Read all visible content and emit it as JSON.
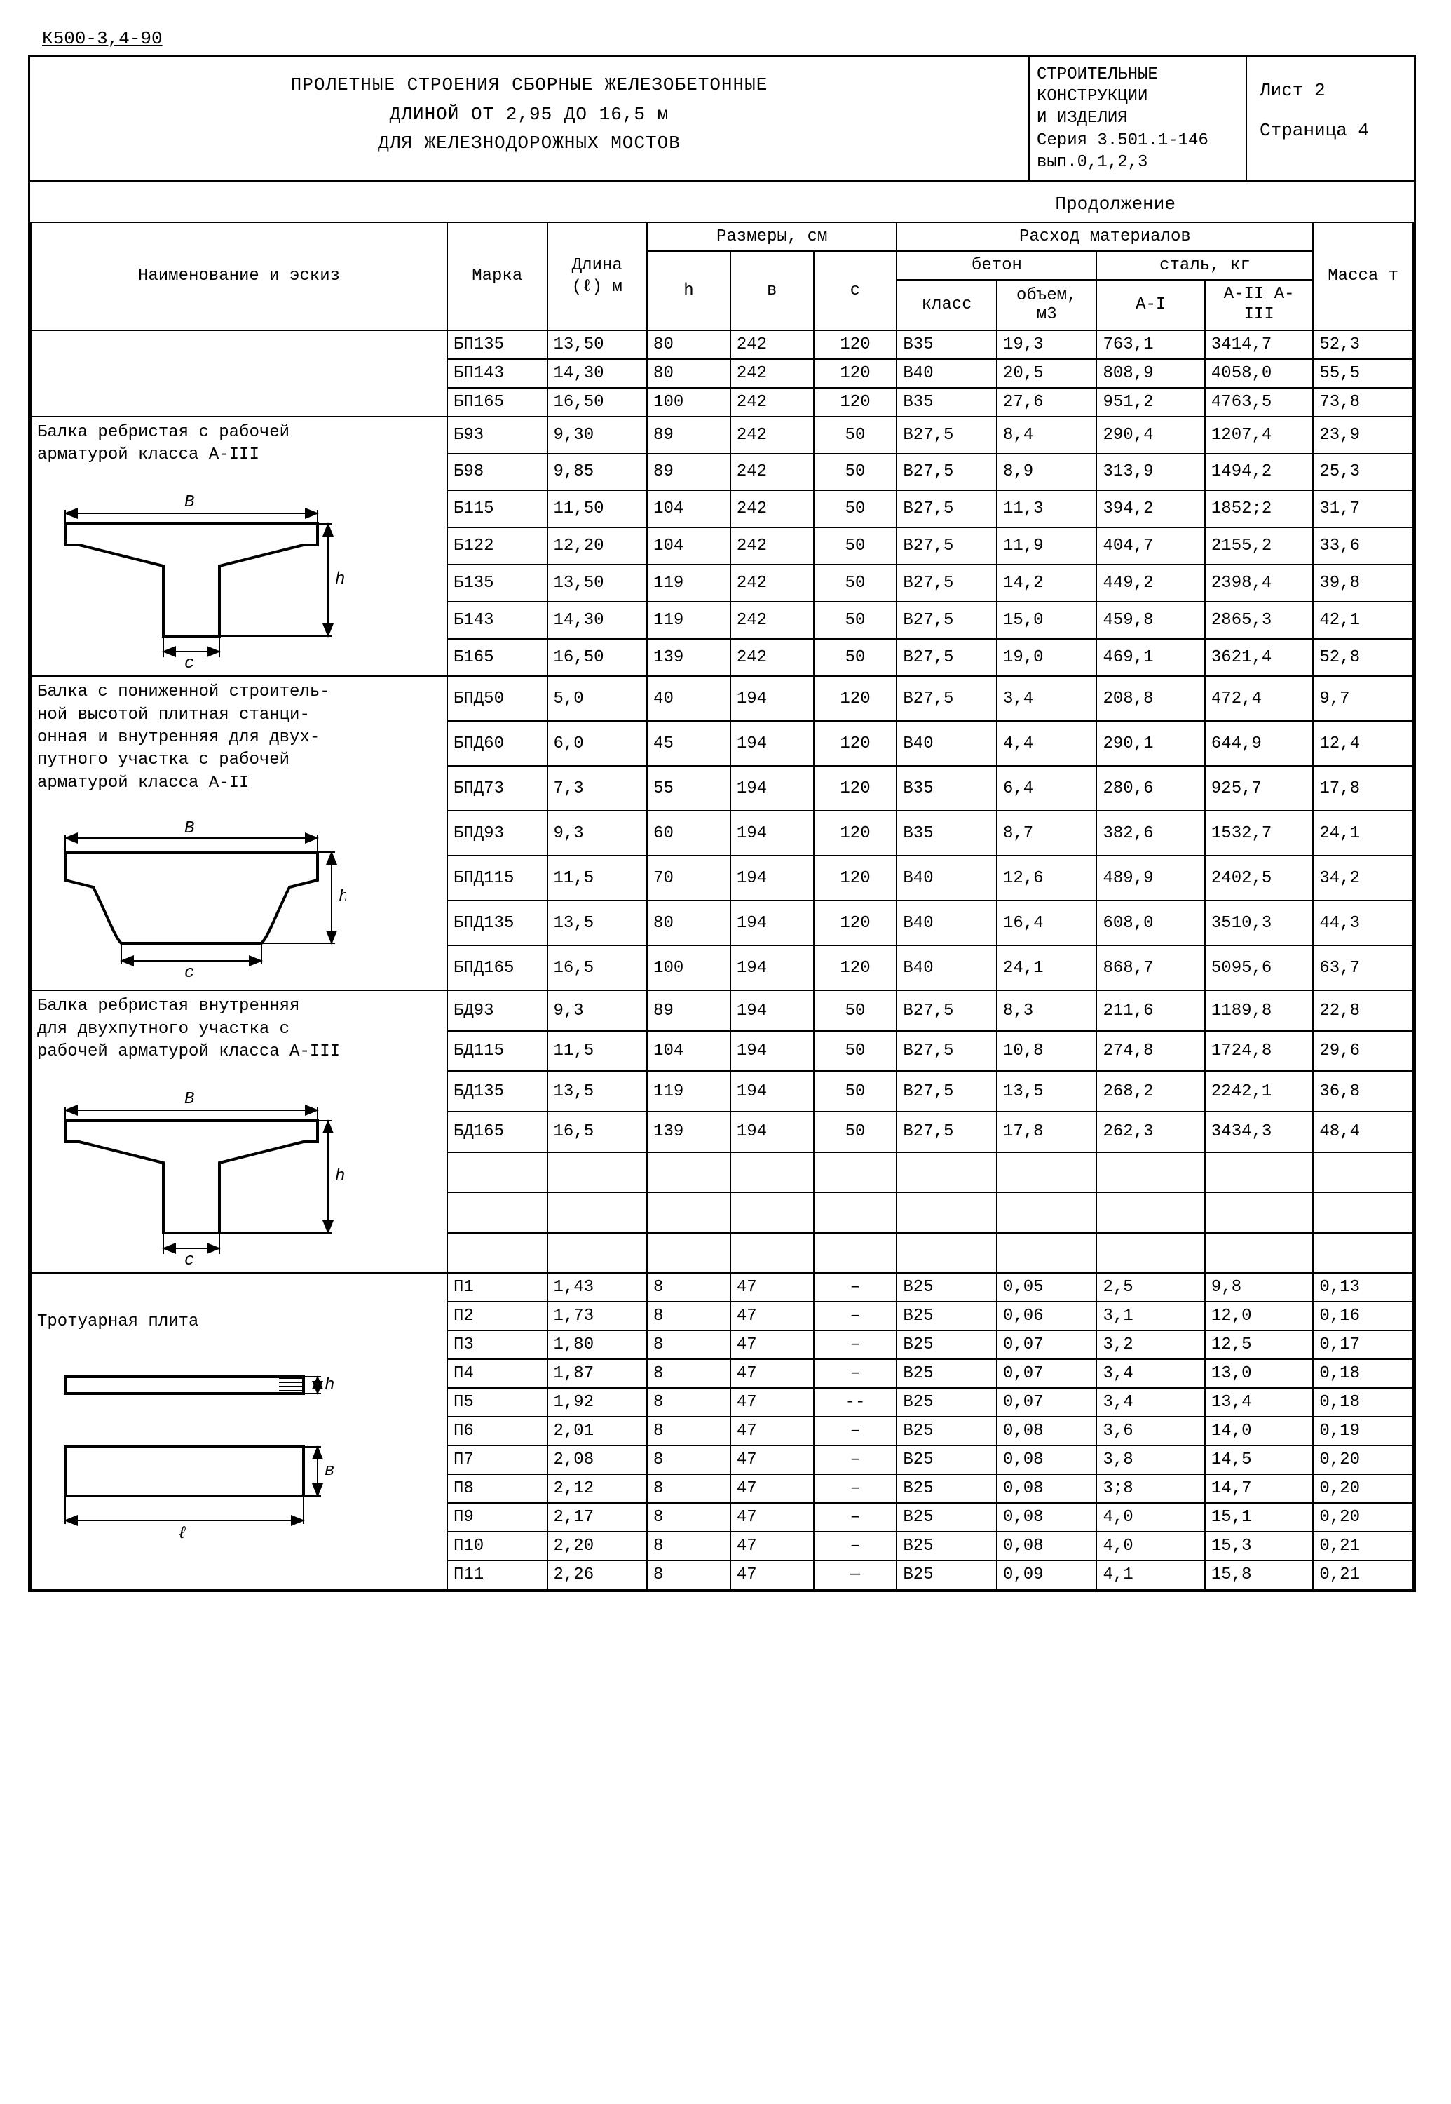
{
  "doc_id": "К500-3,4-90",
  "header": {
    "title_l1": "ПРОЛЕТНЫЕ СТРОЕНИЯ СБОРНЫЕ ЖЕЛЕЗОБЕТОННЫЕ",
    "title_l2": "ДЛИНОЙ ОТ 2,95 ДО 16,5 м",
    "title_l3": "ДЛЯ ЖЕЛЕЗНОДОРОЖНЫХ МОСТОВ",
    "org_l1": "СТРОИТЕЛЬНЫЕ",
    "org_l2": "КОНСТРУКЦИИ",
    "org_l3": "И ИЗДЕЛИЯ",
    "series": "Серия 3.501.1-146",
    "issue": "вып.0,1,2,3",
    "sheet": "Лист 2",
    "page": "Страница 4"
  },
  "continuation": "Продолжение",
  "columns": {
    "name": "Наименование и эскиз",
    "mark": "Марка",
    "length": "Длина (ℓ) м",
    "dims": "Размеры, см",
    "h": "h",
    "b": "в",
    "c": "с",
    "materials": "Расход материалов",
    "concrete": "бетон",
    "steel": "сталь, кг",
    "class": "класс",
    "volume": "объем, м3",
    "a1": "A-I",
    "a2": "A-II A-III",
    "mass": "Масса т"
  },
  "sections": [
    {
      "name_lines": [],
      "sketch": null,
      "rows": [
        {
          "mark": "БП135",
          "len": "13,50",
          "h": "80",
          "b": "242",
          "c": "120",
          "class": "В35",
          "vol": "19,3",
          "a1": "763,1",
          "a2": "3414,7",
          "mass": "52,3"
        },
        {
          "mark": "БП143",
          "len": "14,30",
          "h": "80",
          "b": "242",
          "c": "120",
          "class": "В40",
          "vol": "20,5",
          "a1": "808,9",
          "a2": "4058,0",
          "mass": "55,5"
        },
        {
          "mark": "БП165",
          "len": "16,50",
          "h": "100",
          "b": "242",
          "c": "120",
          "class": "В35",
          "vol": "27,6",
          "a1": "951,2",
          "a2": "4763,5",
          "mass": "73,8"
        }
      ]
    },
    {
      "name_lines": [
        "Балка ребристая с рабочей",
        "арматурой класса A-III"
      ],
      "sketch": "tbeam1",
      "rows": [
        {
          "mark": "Б93",
          "len": "9,30",
          "h": "89",
          "b": "242",
          "c": "50",
          "class": "В27,5",
          "vol": "8,4",
          "a1": "290,4",
          "a2": "1207,4",
          "mass": "23,9"
        },
        {
          "mark": "Б98",
          "len": "9,85",
          "h": "89",
          "b": "242",
          "c": "50",
          "class": "В27,5",
          "vol": "8,9",
          "a1": "313,9",
          "a2": "1494,2",
          "mass": "25,3"
        },
        {
          "mark": "Б115",
          "len": "11,50",
          "h": "104",
          "b": "242",
          "c": "50",
          "class": "В27,5",
          "vol": "11,3",
          "a1": "394,2",
          "a2": "1852;2",
          "mass": "31,7"
        },
        {
          "mark": "Б122",
          "len": "12,20",
          "h": "104",
          "b": "242",
          "c": "50",
          "class": "В27,5",
          "vol": "11,9",
          "a1": "404,7",
          "a2": "2155,2",
          "mass": "33,6"
        },
        {
          "mark": "Б135",
          "len": "13,50",
          "h": "119",
          "b": "242",
          "c": "50",
          "class": "В27,5",
          "vol": "14,2",
          "a1": "449,2",
          "a2": "2398,4",
          "mass": "39,8"
        },
        {
          "mark": "Б143",
          "len": "14,30",
          "h": "119",
          "b": "242",
          "c": "50",
          "class": "В27,5",
          "vol": "15,0",
          "a1": "459,8",
          "a2": "2865,3",
          "mass": "42,1"
        },
        {
          "mark": "Б165",
          "len": "16,50",
          "h": "139",
          "b": "242",
          "c": "50",
          "class": "В27,5",
          "vol": "19,0",
          "a1": "469,1",
          "a2": "3621,4",
          "mass": "52,8"
        }
      ]
    },
    {
      "name_lines": [
        "Балка с пониженной строитель-",
        "ной высотой плитная станци-",
        "онная и внутренняя для двух-",
        "путного участка с рабочей",
        "арматурой       класса A-II"
      ],
      "sketch": "slab_beam",
      "dim_label": "В",
      "rows": [
        {
          "mark": "БПД50",
          "len": "5,0",
          "h": "40",
          "b": "194",
          "c": "120",
          "class": "В27,5",
          "vol": "3,4",
          "a1": "208,8",
          "a2": "472,4",
          "mass": "9,7"
        },
        {
          "mark": "БПД60",
          "len": "6,0",
          "h": "45",
          "b": "194",
          "c": "120",
          "class": "В40",
          "vol": "4,4",
          "a1": "290,1",
          "a2": "644,9",
          "mass": "12,4"
        },
        {
          "mark": "БПД73",
          "len": "7,3",
          "h": "55",
          "b": "194",
          "c": "120",
          "class": "В35",
          "vol": "6,4",
          "a1": "280,6",
          "a2": "925,7",
          "mass": "17,8"
        },
        {
          "mark": "БПД93",
          "len": "9,3",
          "h": "60",
          "b": "194",
          "c": "120",
          "class": "В35",
          "vol": "8,7",
          "a1": "382,6",
          "a2": "1532,7",
          "mass": "24,1"
        },
        {
          "mark": "БПД115",
          "len": "11,5",
          "h": "70",
          "b": "194",
          "c": "120",
          "class": "В40",
          "vol": "12,6",
          "a1": "489,9",
          "a2": "2402,5",
          "mass": "34,2"
        },
        {
          "mark": "БПД135",
          "len": "13,5",
          "h": "80",
          "b": "194",
          "c": "120",
          "class": "В40",
          "vol": "16,4",
          "a1": "608,0",
          "a2": "3510,3",
          "mass": "44,3"
        },
        {
          "mark": "БПД165",
          "len": "16,5",
          "h": "100",
          "b": "194",
          "c": "120",
          "class": "В40",
          "vol": "24,1",
          "a1": "868,7",
          "a2": "5095,6",
          "mass": "63,7"
        }
      ]
    },
    {
      "name_lines": [
        "Балка ребристая внутренняя",
        "для двухпутного участка с",
        "рабочей арматурой класса A-III"
      ],
      "sketch": "tbeam2",
      "rows": [
        {
          "mark": "БД93",
          "len": "9,3",
          "h": "89",
          "b": "194",
          "c": "50",
          "class": "В27,5",
          "vol": "8,3",
          "a1": "211,6",
          "a2": "1189,8",
          "mass": "22,8"
        },
        {
          "mark": "БД115",
          "len": "11,5",
          "h": "104",
          "b": "194",
          "c": "50",
          "class": "В27,5",
          "vol": "10,8",
          "a1": "274,8",
          "a2": "1724,8",
          "mass": "29,6"
        },
        {
          "mark": "БД135",
          "len": "13,5",
          "h": "119",
          "b": "194",
          "c": "50",
          "class": "В27,5",
          "vol": "13,5",
          "a1": "268,2",
          "a2": "2242,1",
          "mass": "36,8"
        },
        {
          "mark": "БД165",
          "len": "16,5",
          "h": "139",
          "b": "194",
          "c": "50",
          "class": "В27,5",
          "vol": "17,8",
          "a1": "262,3",
          "a2": "3434,3",
          "mass": "48,4"
        }
      ],
      "spacer_rows": 3
    },
    {
      "name_lines": [
        "Тротуарная плита"
      ],
      "sketch": "sidewalk",
      "rows": [
        {
          "mark": "П1",
          "len": "1,43",
          "h": "8",
          "b": "47",
          "c": "–",
          "class": "В25",
          "vol": "0,05",
          "a1": "2,5",
          "a2": "9,8",
          "mass": "0,13"
        },
        {
          "mark": "П2",
          "len": "1,73",
          "h": "8",
          "b": "47",
          "c": "–",
          "class": "В25",
          "vol": "0,06",
          "a1": "3,1",
          "a2": "12,0",
          "mass": "0,16"
        },
        {
          "mark": "П3",
          "len": "1,80",
          "h": "8",
          "b": "47",
          "c": "–",
          "class": "В25",
          "vol": "0,07",
          "a1": "3,2",
          "a2": "12,5",
          "mass": "0,17"
        },
        {
          "mark": "П4",
          "len": "1,87",
          "h": "8",
          "b": "47",
          "c": "–",
          "class": "В25",
          "vol": "0,07",
          "a1": "3,4",
          "a2": "13,0",
          "mass": "0,18"
        },
        {
          "mark": "П5",
          "len": "1,92",
          "h": "8",
          "b": "47",
          "c": "--",
          "class": "В25",
          "vol": "0,07",
          "a1": "3,4",
          "a2": "13,4",
          "mass": "0,18"
        },
        {
          "mark": "П6",
          "len": "2,01",
          "h": "8",
          "b": "47",
          "c": "–",
          "class": "В25",
          "vol": "0,08",
          "a1": "3,6",
          "a2": "14,0",
          "mass": "0,19"
        },
        {
          "mark": "П7",
          "len": "2,08",
          "h": "8",
          "b": "47",
          "c": "–",
          "class": "В25",
          "vol": "0,08",
          "a1": "3,8",
          "a2": "14,5",
          "mass": "0,20"
        },
        {
          "mark": "П8",
          "len": "2,12",
          "h": "8",
          "b": "47",
          "c": "–",
          "class": "В25",
          "vol": "0,08",
          "a1": "3;8",
          "a2": "14,7",
          "mass": "0,20"
        },
        {
          "mark": "П9",
          "len": "2,17",
          "h": "8",
          "b": "47",
          "c": "–",
          "class": "В25",
          "vol": "0,08",
          "a1": "4,0",
          "a2": "15,1",
          "mass": "0,20"
        },
        {
          "mark": "П10",
          "len": "2,20",
          "h": "8",
          "b": "47",
          "c": "–",
          "class": "В25",
          "vol": "0,08",
          "a1": "4,0",
          "a2": "15,3",
          "mass": "0,21"
        },
        {
          "mark": "П11",
          "len": "2,26",
          "h": "8",
          "b": "47",
          "c": "—",
          "class": "В25",
          "vol": "0,09",
          "a1": "4,1",
          "a2": "15,8",
          "mass": "0,21"
        }
      ]
    }
  ],
  "sketches": {
    "labels": {
      "B": "В",
      "h": "h",
      "c": "с",
      "l": "ℓ",
      "v": "в"
    }
  },
  "style": {
    "stroke": "#000000",
    "stroke_width": 4,
    "thin_stroke": 2,
    "font": "Courier New",
    "bg": "#ffffff"
  }
}
